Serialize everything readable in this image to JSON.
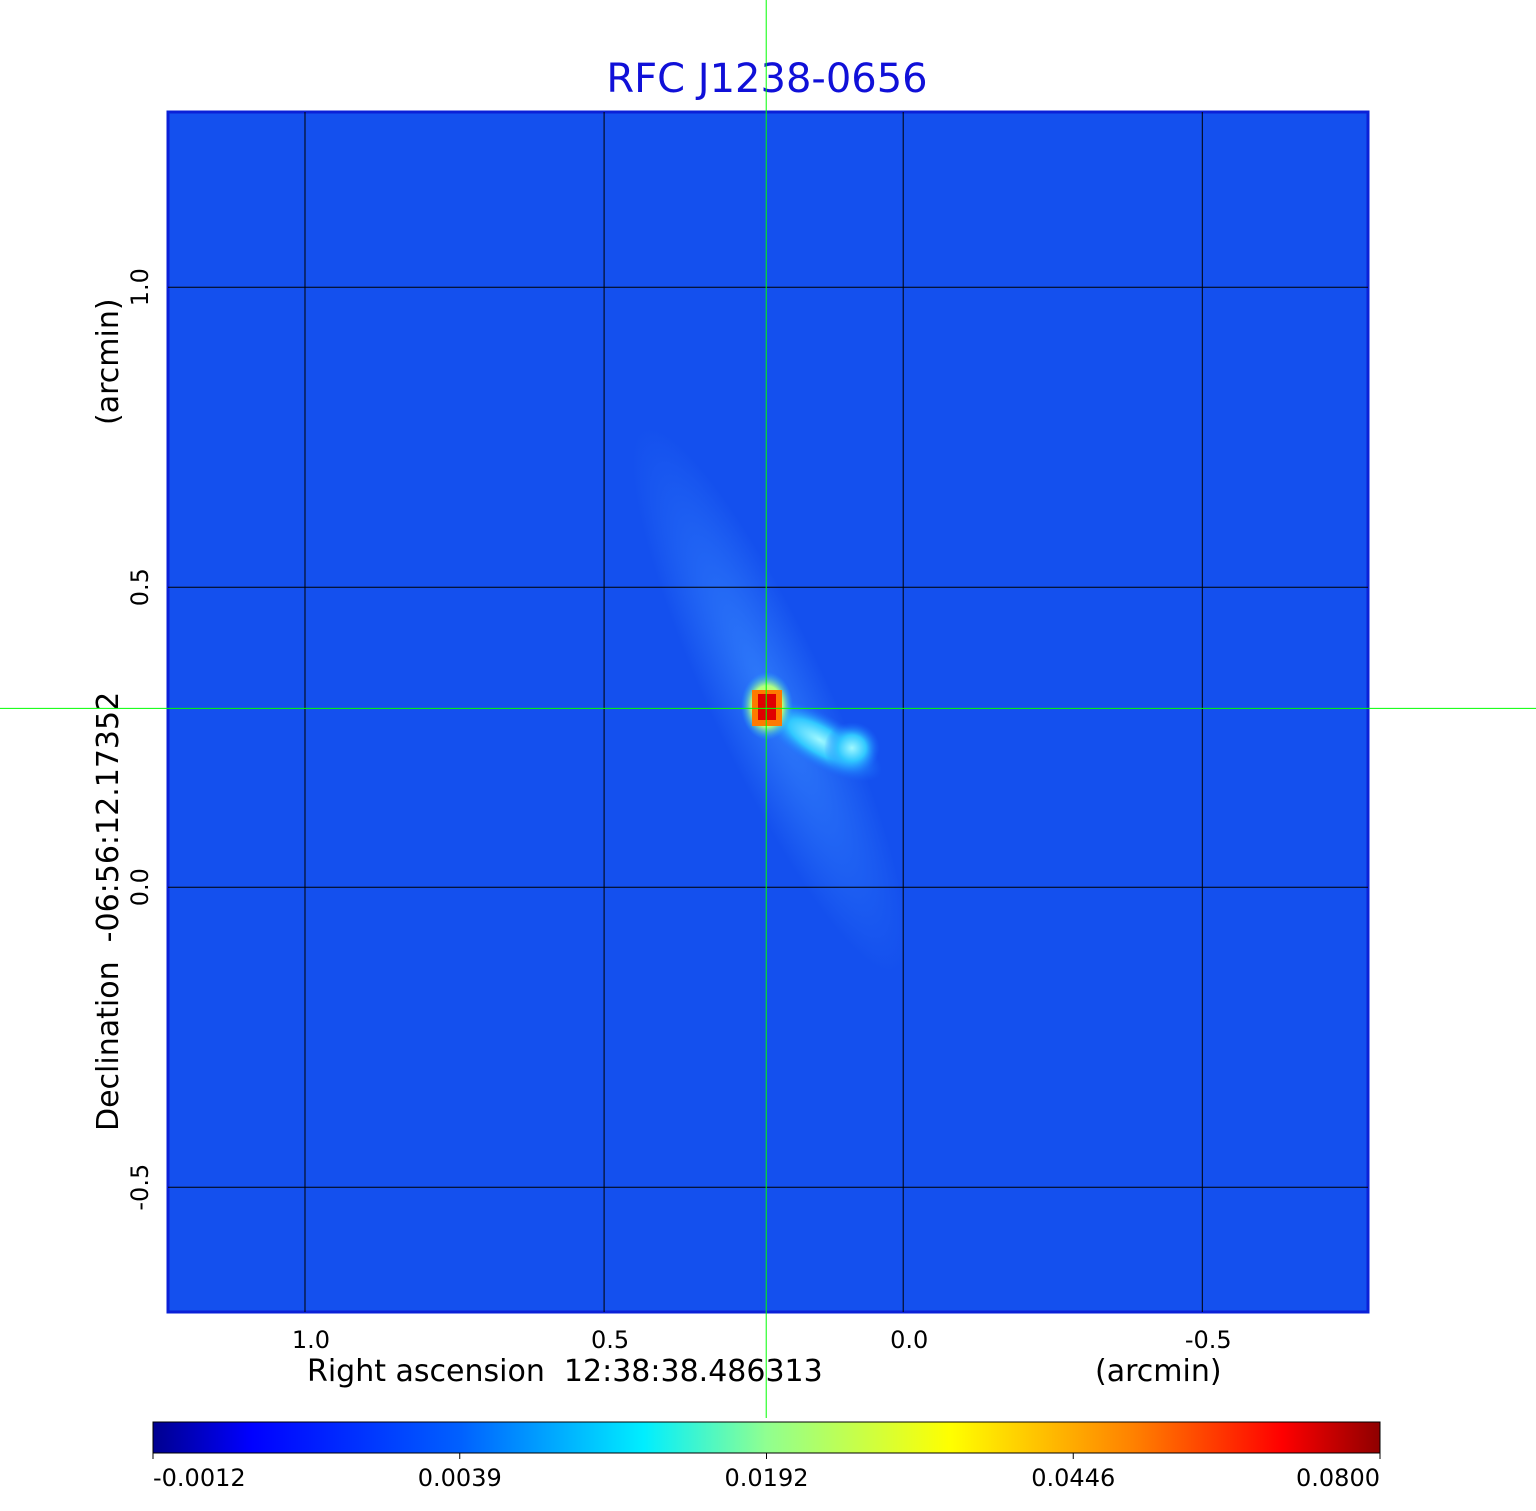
{
  "chart_data": {
    "type": "image",
    "title": "RFC J1238-0656",
    "x_label": "Right ascension  12:38:38.486313",
    "x_unit": "(arcmin)",
    "y_label": "Declination  -06:56:12.17352",
    "y_unit": "(arcmin)",
    "xlim": [
      1.229,
      -0.777
    ],
    "ylim": [
      -0.708,
      1.292
    ],
    "xticks": [
      {
        "value": 1,
        "label": "1.0"
      },
      0.5,
      {
        "value": 0,
        "label": "0.0"
      },
      -0.5
    ],
    "yticks": [
      {
        "value": 1,
        "label": "1.0"
      },
      0.5,
      {
        "value": 0,
        "label": "0.0"
      },
      -0.5
    ],
    "grid": true,
    "crosshair": {
      "x": 0.229,
      "y": 0.298,
      "color": "#00ff00"
    },
    "colormap": "jet",
    "colorbar": {
      "lim": [
        -0.0012,
        0.08
      ],
      "ticks": [
        -0.0012,
        0.0039,
        0.0192,
        0.0446,
        {
          "value": 0.08,
          "label": "0.0800"
        }
      ]
    }
  }
}
